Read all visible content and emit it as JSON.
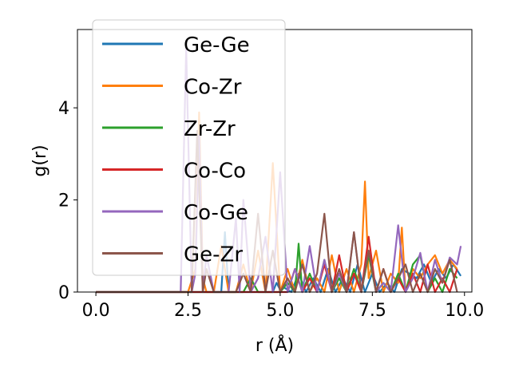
{
  "chart_data": {
    "type": "line",
    "xlabel": "r (Å)",
    "ylabel": "g(r)",
    "xlim": [
      -0.5,
      10.2
    ],
    "ylim": [
      0,
      5.7
    ],
    "xticks": [
      0.0,
      2.5,
      5.0,
      7.5,
      10.0
    ],
    "xtick_labels": [
      "0.0",
      "2.5",
      "5.0",
      "7.5",
      "10.0"
    ],
    "yticks": [
      0,
      2,
      4
    ],
    "ytick_labels": [
      "0",
      "2",
      "4"
    ],
    "legend_position": "top-left",
    "grid": false,
    "series": [
      {
        "name": "Ge-Ge",
        "color": "#1f77b4",
        "x": [
          0,
          2.2,
          2.4,
          2.6,
          2.8,
          3.0,
          3.2,
          3.4,
          3.5,
          3.6,
          3.8,
          4.0,
          4.2,
          4.4,
          4.6,
          4.8,
          4.9,
          5.0,
          5.1,
          5.3,
          5.5,
          5.7,
          5.9,
          6.1,
          6.3,
          6.5,
          6.7,
          6.9,
          7.1,
          7.3,
          7.5,
          7.7,
          7.9,
          8.1,
          8.3,
          8.5,
          8.7,
          8.9,
          9.1,
          9.3,
          9.5,
          9.7,
          9.9
        ],
        "y": [
          0,
          0,
          0,
          0,
          0,
          0,
          0,
          0,
          1.3,
          0,
          0,
          0,
          0,
          0,
          0,
          0,
          0.2,
          0.05,
          0.1,
          0,
          0.4,
          0,
          0.3,
          0,
          0.5,
          0,
          0.3,
          0,
          0.6,
          0,
          0.4,
          0,
          0.2,
          0,
          0.5,
          0.4,
          0.3,
          0.6,
          0.2,
          0.5,
          0.3,
          0.6,
          0.35
        ]
      },
      {
        "name": "Co-Zr",
        "color": "#ff7f0e",
        "x": [
          0,
          2.5,
          2.7,
          2.8,
          2.9,
          3.0,
          3.2,
          3.4,
          3.6,
          3.8,
          4.0,
          4.2,
          4.4,
          4.6,
          4.8,
          5.0,
          5.2,
          5.4,
          5.6,
          5.8,
          6.0,
          6.2,
          6.4,
          6.6,
          6.8,
          7.0,
          7.2,
          7.3,
          7.4,
          7.6,
          7.8,
          8.0,
          8.2,
          8.3,
          8.4,
          8.6,
          8.8,
          9.0,
          9.2,
          9.4,
          9.6,
          9.8
        ],
        "y": [
          0,
          0,
          0.5,
          3.9,
          0.3,
          0,
          0,
          1.0,
          0,
          0,
          0.6,
          0,
          0.9,
          0,
          2.8,
          0,
          0.5,
          0,
          0.7,
          0,
          0.3,
          0,
          0.8,
          0,
          0.5,
          0,
          0.6,
          2.4,
          0.3,
          0.9,
          0,
          0.4,
          0.2,
          1.4,
          0,
          0.5,
          0.3,
          0.6,
          0.8,
          0.4,
          0.7,
          0.5
        ]
      },
      {
        "name": "Zr-Zr",
        "color": "#2ca02c",
        "x": [
          0,
          3.0,
          3.2,
          3.4,
          3.6,
          3.8,
          4.0,
          4.2,
          4.4,
          4.6,
          4.8,
          5.0,
          5.2,
          5.4,
          5.5,
          5.6,
          5.8,
          6.0,
          6.2,
          6.4,
          6.6,
          6.8,
          7.0,
          7.2,
          7.4,
          7.6,
          7.8,
          8.0,
          8.2,
          8.4,
          8.6,
          8.8,
          9.0,
          9.2,
          9.4,
          9.6,
          9.8
        ],
        "y": [
          0,
          0,
          0,
          0,
          0,
          0,
          0,
          0.3,
          0,
          0,
          0,
          0,
          0.2,
          0,
          1.05,
          0,
          0.4,
          0,
          0.7,
          0,
          0.3,
          0,
          0.5,
          0,
          0.8,
          0,
          0.2,
          0,
          0.4,
          0,
          0.6,
          0.8,
          0,
          0.3,
          0,
          0.5,
          0.3
        ]
      },
      {
        "name": "Co-Co",
        "color": "#d62728",
        "x": [
          0,
          3.6,
          3.8,
          4.0,
          4.2,
          4.4,
          4.6,
          4.8,
          5.0,
          5.2,
          5.4,
          5.6,
          5.8,
          6.0,
          6.2,
          6.4,
          6.6,
          6.8,
          7.0,
          7.2,
          7.4,
          7.6,
          7.8,
          8.0,
          8.2,
          8.4,
          8.6,
          8.8,
          9.0,
          9.2,
          9.4,
          9.6,
          9.8
        ],
        "y": [
          0,
          0,
          0,
          0,
          0,
          0,
          0,
          0,
          0,
          0,
          0.5,
          0,
          0.3,
          0,
          0.6,
          0,
          0.8,
          0,
          0.4,
          0,
          1.2,
          0,
          0.5,
          0,
          0.3,
          0,
          0.4,
          0,
          0.6,
          0,
          0.3,
          0,
          0.5
        ]
      },
      {
        "name": "Co-Ge",
        "color": "#9467bd",
        "x": [
          0,
          2.2,
          2.3,
          2.45,
          2.6,
          2.7,
          2.8,
          2.9,
          3.0,
          3.2,
          3.4,
          3.6,
          3.8,
          3.9,
          4.0,
          4.2,
          4.4,
          4.6,
          4.8,
          5.0,
          5.2,
          5.4,
          5.6,
          5.8,
          6.0,
          6.2,
          6.4,
          6.6,
          6.8,
          7.0,
          7.2,
          7.4,
          7.6,
          7.8,
          8.0,
          8.2,
          8.4,
          8.6,
          8.8,
          9.0,
          9.2,
          9.4,
          9.6,
          9.8,
          9.9
        ],
        "y": [
          0,
          0,
          0,
          5.3,
          0,
          0.4,
          3.4,
          0,
          0.8,
          0,
          0,
          0,
          1.6,
          0,
          2.0,
          0,
          0.3,
          1.2,
          0,
          2.6,
          0,
          0.5,
          0,
          1.0,
          0,
          0.7,
          0,
          0.4,
          0,
          1.3,
          0,
          0.9,
          0,
          0.2,
          0,
          1.45,
          0,
          0.3,
          0.85,
          0,
          0.7,
          0.2,
          0.75,
          0.6,
          1.0
        ]
      },
      {
        "name": "Ge-Zr",
        "color": "#8c564b",
        "x": [
          0,
          2.6,
          2.75,
          2.9,
          3.0,
          3.2,
          3.4,
          3.6,
          3.8,
          4.0,
          4.2,
          4.4,
          4.6,
          4.8,
          5.0,
          5.2,
          5.4,
          5.6,
          5.8,
          6.0,
          6.2,
          6.4,
          6.6,
          6.8,
          7.0,
          7.2,
          7.4,
          7.6,
          7.8,
          8.0,
          8.2,
          8.4,
          8.6,
          8.8,
          9.0,
          9.2,
          9.4,
          9.6,
          9.8
        ],
        "y": [
          0,
          0,
          3.5,
          0,
          0.5,
          0,
          0,
          0,
          0,
          0.4,
          0,
          1.7,
          0,
          0.9,
          0,
          0.3,
          0,
          0.6,
          0,
          0.4,
          1.7,
          0,
          0.5,
          0,
          1.3,
          0,
          0.9,
          0,
          0.5,
          0,
          0.3,
          0.6,
          0,
          0.4,
          0,
          0.5,
          0.2,
          0.7,
          0
        ]
      }
    ]
  }
}
